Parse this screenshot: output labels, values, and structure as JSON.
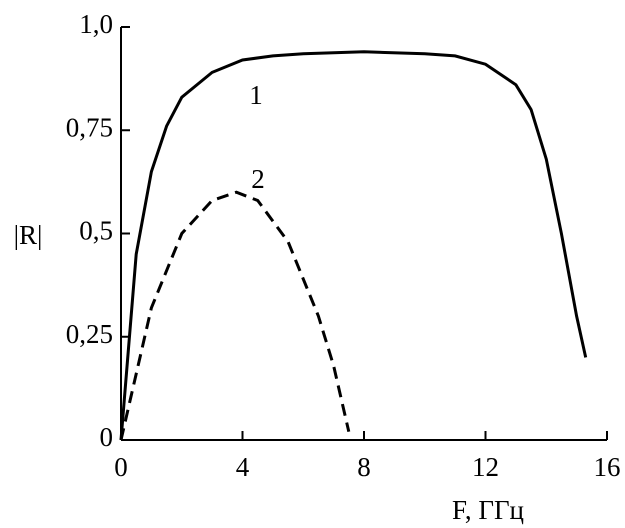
{
  "chart_data": {
    "type": "line",
    "xlabel": "F, ГГц",
    "ylabel": "|R|",
    "xlim": [
      0,
      16
    ],
    "ylim": [
      0,
      1.0
    ],
    "xticks": [
      0,
      4,
      8,
      12,
      16
    ],
    "yticks": [
      0,
      {
        "value": 0.25,
        "label": "0,25"
      },
      {
        "value": 0.5,
        "label": "0,5"
      },
      {
        "value": 0.75,
        "label": "0,75"
      },
      {
        "value": 1.0,
        "label": "1,0"
      }
    ],
    "series": [
      {
        "name": "1",
        "color": "#000000",
        "dash": false,
        "x": [
          0,
          0.5,
          1,
          1.5,
          2,
          3,
          4,
          5,
          6,
          8,
          10,
          11,
          12,
          13,
          13.5,
          14,
          14.5,
          15,
          15.3
        ],
        "values": [
          0,
          0.45,
          0.65,
          0.76,
          0.83,
          0.89,
          0.92,
          0.93,
          0.935,
          0.94,
          0.935,
          0.93,
          0.91,
          0.86,
          0.8,
          0.68,
          0.5,
          0.3,
          0.2
        ]
      },
      {
        "name": "2",
        "color": "#000000",
        "dash": true,
        "x": [
          0,
          1,
          2,
          3,
          3.8,
          4.5,
          5.5,
          6.5,
          7,
          7.5
        ],
        "values": [
          0,
          0.32,
          0.5,
          0.58,
          0.6,
          0.58,
          0.48,
          0.3,
          0.18,
          0.02
        ]
      }
    ]
  }
}
